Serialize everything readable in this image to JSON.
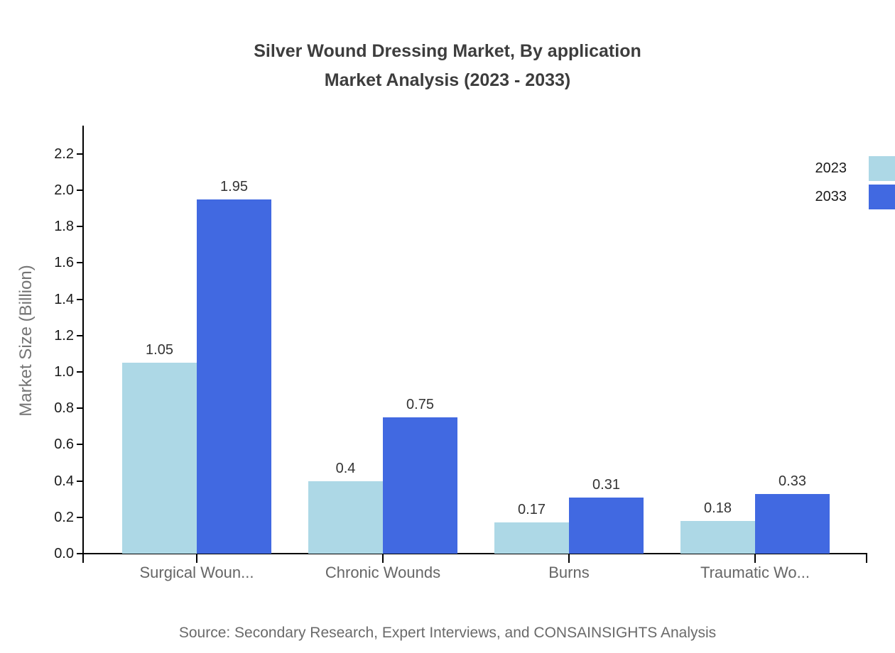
{
  "title": {
    "line1": "Silver Wound Dressing Market, By application",
    "line2": "Market Analysis (2023 - 2033)"
  },
  "source": "Source: Secondary Research, Expert Interviews, and CONSAINSIGHTS Analysis",
  "chart_data": {
    "type": "bar",
    "categories": [
      "Surgical Woun...",
      "Chronic Wounds",
      "Burns",
      "Traumatic Wo..."
    ],
    "series": [
      {
        "name": "2023",
        "color": "#ADD8E6",
        "values": [
          1.05,
          0.4,
          0.17,
          0.18
        ]
      },
      {
        "name": "2033",
        "color": "#4169E1",
        "values": [
          1.95,
          0.75,
          0.31,
          0.33
        ]
      }
    ],
    "xlabel": "",
    "ylabel": "Market Size (Billion)",
    "yticks": [
      0.0,
      0.2,
      0.4,
      0.6,
      0.8,
      1.0,
      1.2,
      1.4,
      1.6,
      1.8,
      2.0,
      2.2
    ],
    "ylim": [
      0,
      2.35
    ],
    "grid": false,
    "value_labels": true,
    "legend_position": "top-right"
  }
}
